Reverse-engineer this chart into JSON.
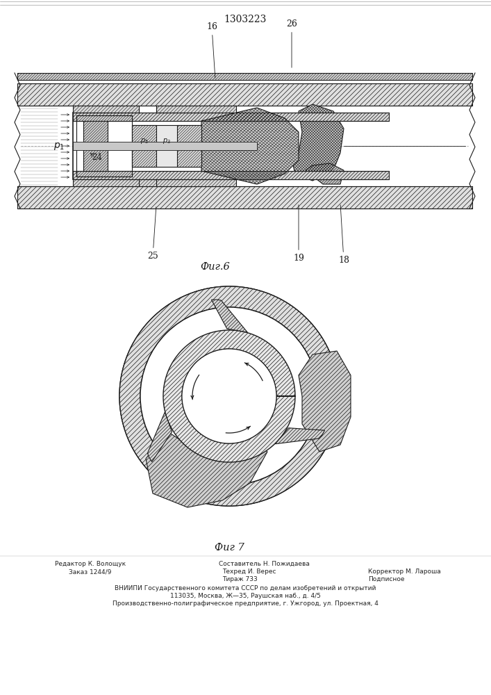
{
  "patent_number": "1303223",
  "fig6_label": "Фиг.6",
  "fig7_label": "Фиг 7",
  "footer_left_line1": "Редактор К. Волощук",
  "footer_left_line2": "Заказ 1244/9",
  "footer_center_line1": "Составитель Н. Пожидаева",
  "footer_center_line2": "Техред И. Верес",
  "footer_center_line3": "Тираж 733",
  "footer_right_line2": "Корректор М. Лароша",
  "footer_right_line3": "Подписное",
  "footer_vniiipi": "ВНИИПИ Государственного комитета СССР по делам изобретений и открытий",
  "footer_address": "113035, Москва, Ж—35, Раушская наб., д. 4/5",
  "footer_production": "Производственно-полиграфическое предприятие, г. Ужгород, ул. Проектная, 4",
  "line_color": "#1a1a1a"
}
